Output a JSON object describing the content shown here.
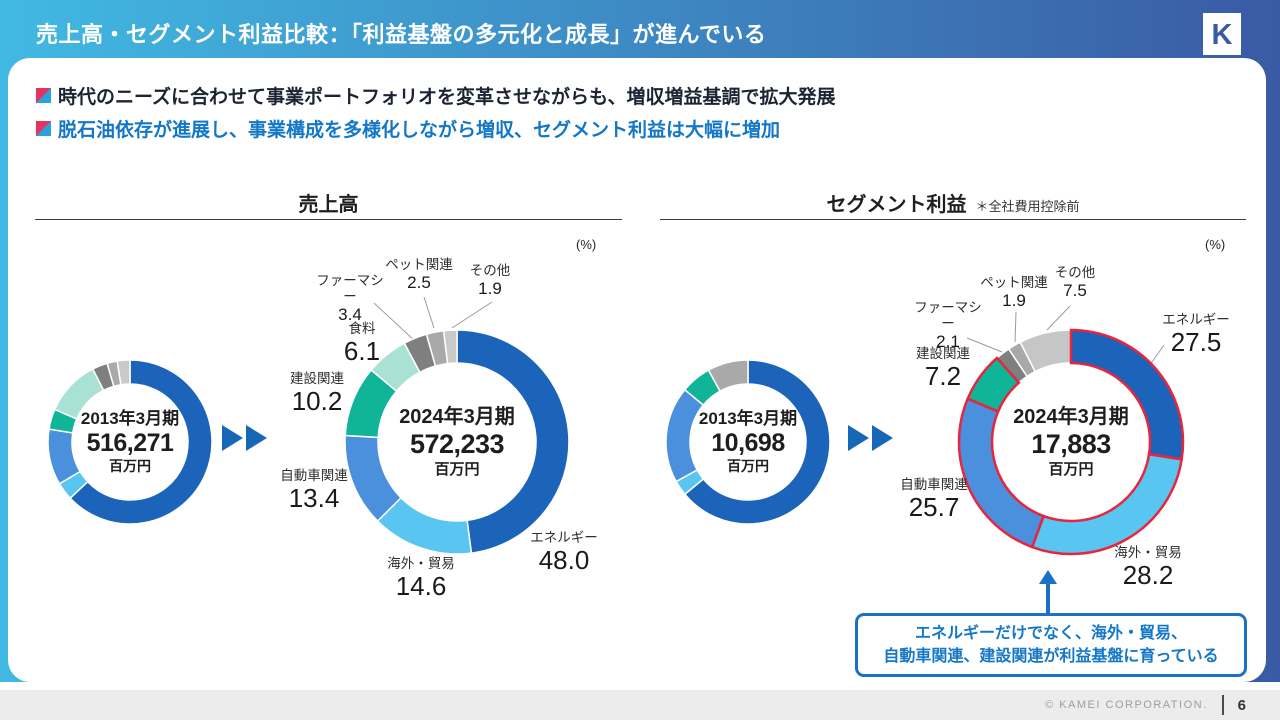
{
  "slide": {
    "header": {
      "title": "売上高・セグメント利益比較：「利益基盤の多元化と成長」が進んでいる",
      "logo_letter": "K"
    },
    "bullets": [
      {
        "text": "時代のニーズに合わせて事業ポートフォリオを変革させながらも、増収増益基調で拡大発展"
      },
      {
        "text": "脱石油依存が進展し、事業構成を多様化しながら増収、セグメント利益は大幅に増加"
      }
    ],
    "sections": [
      {
        "title": "売上高",
        "unit_note": "(%)"
      },
      {
        "title": "セグメント利益",
        "subtitle": "＊全社費用控除前",
        "unit_note": "(%)"
      }
    ],
    "callout": {
      "line1": "エネルギーだけでなく、海外・貿易、",
      "line2": "自動車関連、建設関連が利益基盤に育っている"
    },
    "footer": {
      "copyright": "© KAMEI CORPORATION.",
      "page": "6"
    }
  },
  "chart_data": [
    {
      "id": "sales-2013",
      "type": "donut",
      "group": "売上高",
      "period": "2013年3月期",
      "total": "516,271",
      "unit": "百万円",
      "start": "top",
      "direction": "clockwise",
      "values_estimated": true,
      "segments": [
        {
          "label": "エネルギー",
          "value": 63.0,
          "color": "#1b64ba"
        },
        {
          "label": "海外・貿易",
          "value": 3.5,
          "color": "#58c6f0"
        },
        {
          "label": "自動車関連",
          "value": 11.0,
          "color": "#4a90dc"
        },
        {
          "label": "建設関連",
          "value": 4.0,
          "color": "#10b497"
        },
        {
          "label": "食料",
          "value": 11.0,
          "color": "#a9e2d4"
        },
        {
          "label": "ファーマシー",
          "value": 3.0,
          "color": "#7f7f7f"
        },
        {
          "label": "ペット関連",
          "value": 2.0,
          "color": "#a9a9a9"
        },
        {
          "label": "その他",
          "value": 2.5,
          "color": "#c9c9c9"
        }
      ]
    },
    {
      "id": "sales-2024",
      "type": "donut",
      "group": "売上高",
      "period": "2024年3月期",
      "total": "572,233",
      "unit": "百万円",
      "start": "top",
      "direction": "clockwise",
      "segments": [
        {
          "label": "エネルギー",
          "value": 48.0,
          "display": "48.0",
          "color": "#1b64ba"
        },
        {
          "label": "海外・貿易",
          "value": 14.6,
          "display": "14.6",
          "color": "#58c6f0"
        },
        {
          "label": "自動車関連",
          "value": 13.4,
          "display": "13.4",
          "color": "#4a90dc"
        },
        {
          "label": "建設関連",
          "value": 10.2,
          "display": "10.2",
          "color": "#10b497"
        },
        {
          "label": "食料",
          "value": 6.1,
          "display": "6.1",
          "color": "#a9e2d4"
        },
        {
          "label": "ファーマシー",
          "value": 3.4,
          "display": "3.4",
          "color": "#7f7f7f"
        },
        {
          "label": "ペット関連",
          "value": 2.5,
          "display": "2.5",
          "color": "#a9a9a9"
        },
        {
          "label": "その他",
          "value": 1.9,
          "display": "1.9",
          "color": "#c9c9c9"
        }
      ]
    },
    {
      "id": "profit-2013",
      "type": "donut",
      "group": "セグメント利益",
      "period": "2013年3月期",
      "total": "10,698",
      "unit": "百万円",
      "start": "top",
      "direction": "clockwise",
      "values_estimated": true,
      "segments": [
        {
          "label": "エネルギー",
          "value": 64.0,
          "color": "#1b64ba"
        },
        {
          "label": "海外・貿易",
          "value": 3.0,
          "color": "#58c6f0"
        },
        {
          "label": "自動車関連",
          "value": 19.0,
          "color": "#4a90dc"
        },
        {
          "label": "建設関連",
          "value": 6.0,
          "color": "#10b497"
        },
        {
          "label": "その他",
          "value": 8.0,
          "color": "#a9a9a9"
        }
      ]
    },
    {
      "id": "profit-2024",
      "type": "donut",
      "group": "セグメント利益",
      "period": "2024年3月期",
      "total": "17,883",
      "unit": "百万円",
      "start": "top",
      "direction": "clockwise",
      "highlight_color": "#e8243f",
      "segments": [
        {
          "label": "エネルギー",
          "value": 27.5,
          "display": "27.5",
          "color": "#1b64ba",
          "highlight": true
        },
        {
          "label": "海外・貿易",
          "value": 28.2,
          "display": "28.2",
          "color": "#58c6f0",
          "highlight": true
        },
        {
          "label": "自動車関連",
          "value": 25.7,
          "display": "25.7",
          "color": "#4a90dc",
          "highlight": true
        },
        {
          "label": "建設関連",
          "value": 7.2,
          "display": "7.2",
          "color": "#10b497",
          "highlight": true
        },
        {
          "label": "ファーマシー",
          "value": 2.1,
          "display": "2.1",
          "color": "#7f7f7f"
        },
        {
          "label": "ペット関連",
          "value": 1.9,
          "display": "1.9",
          "color": "#a9a9a9"
        },
        {
          "label": "その他",
          "value": 7.5,
          "display": "7.5",
          "color": "#c6c6c6"
        }
      ]
    }
  ]
}
